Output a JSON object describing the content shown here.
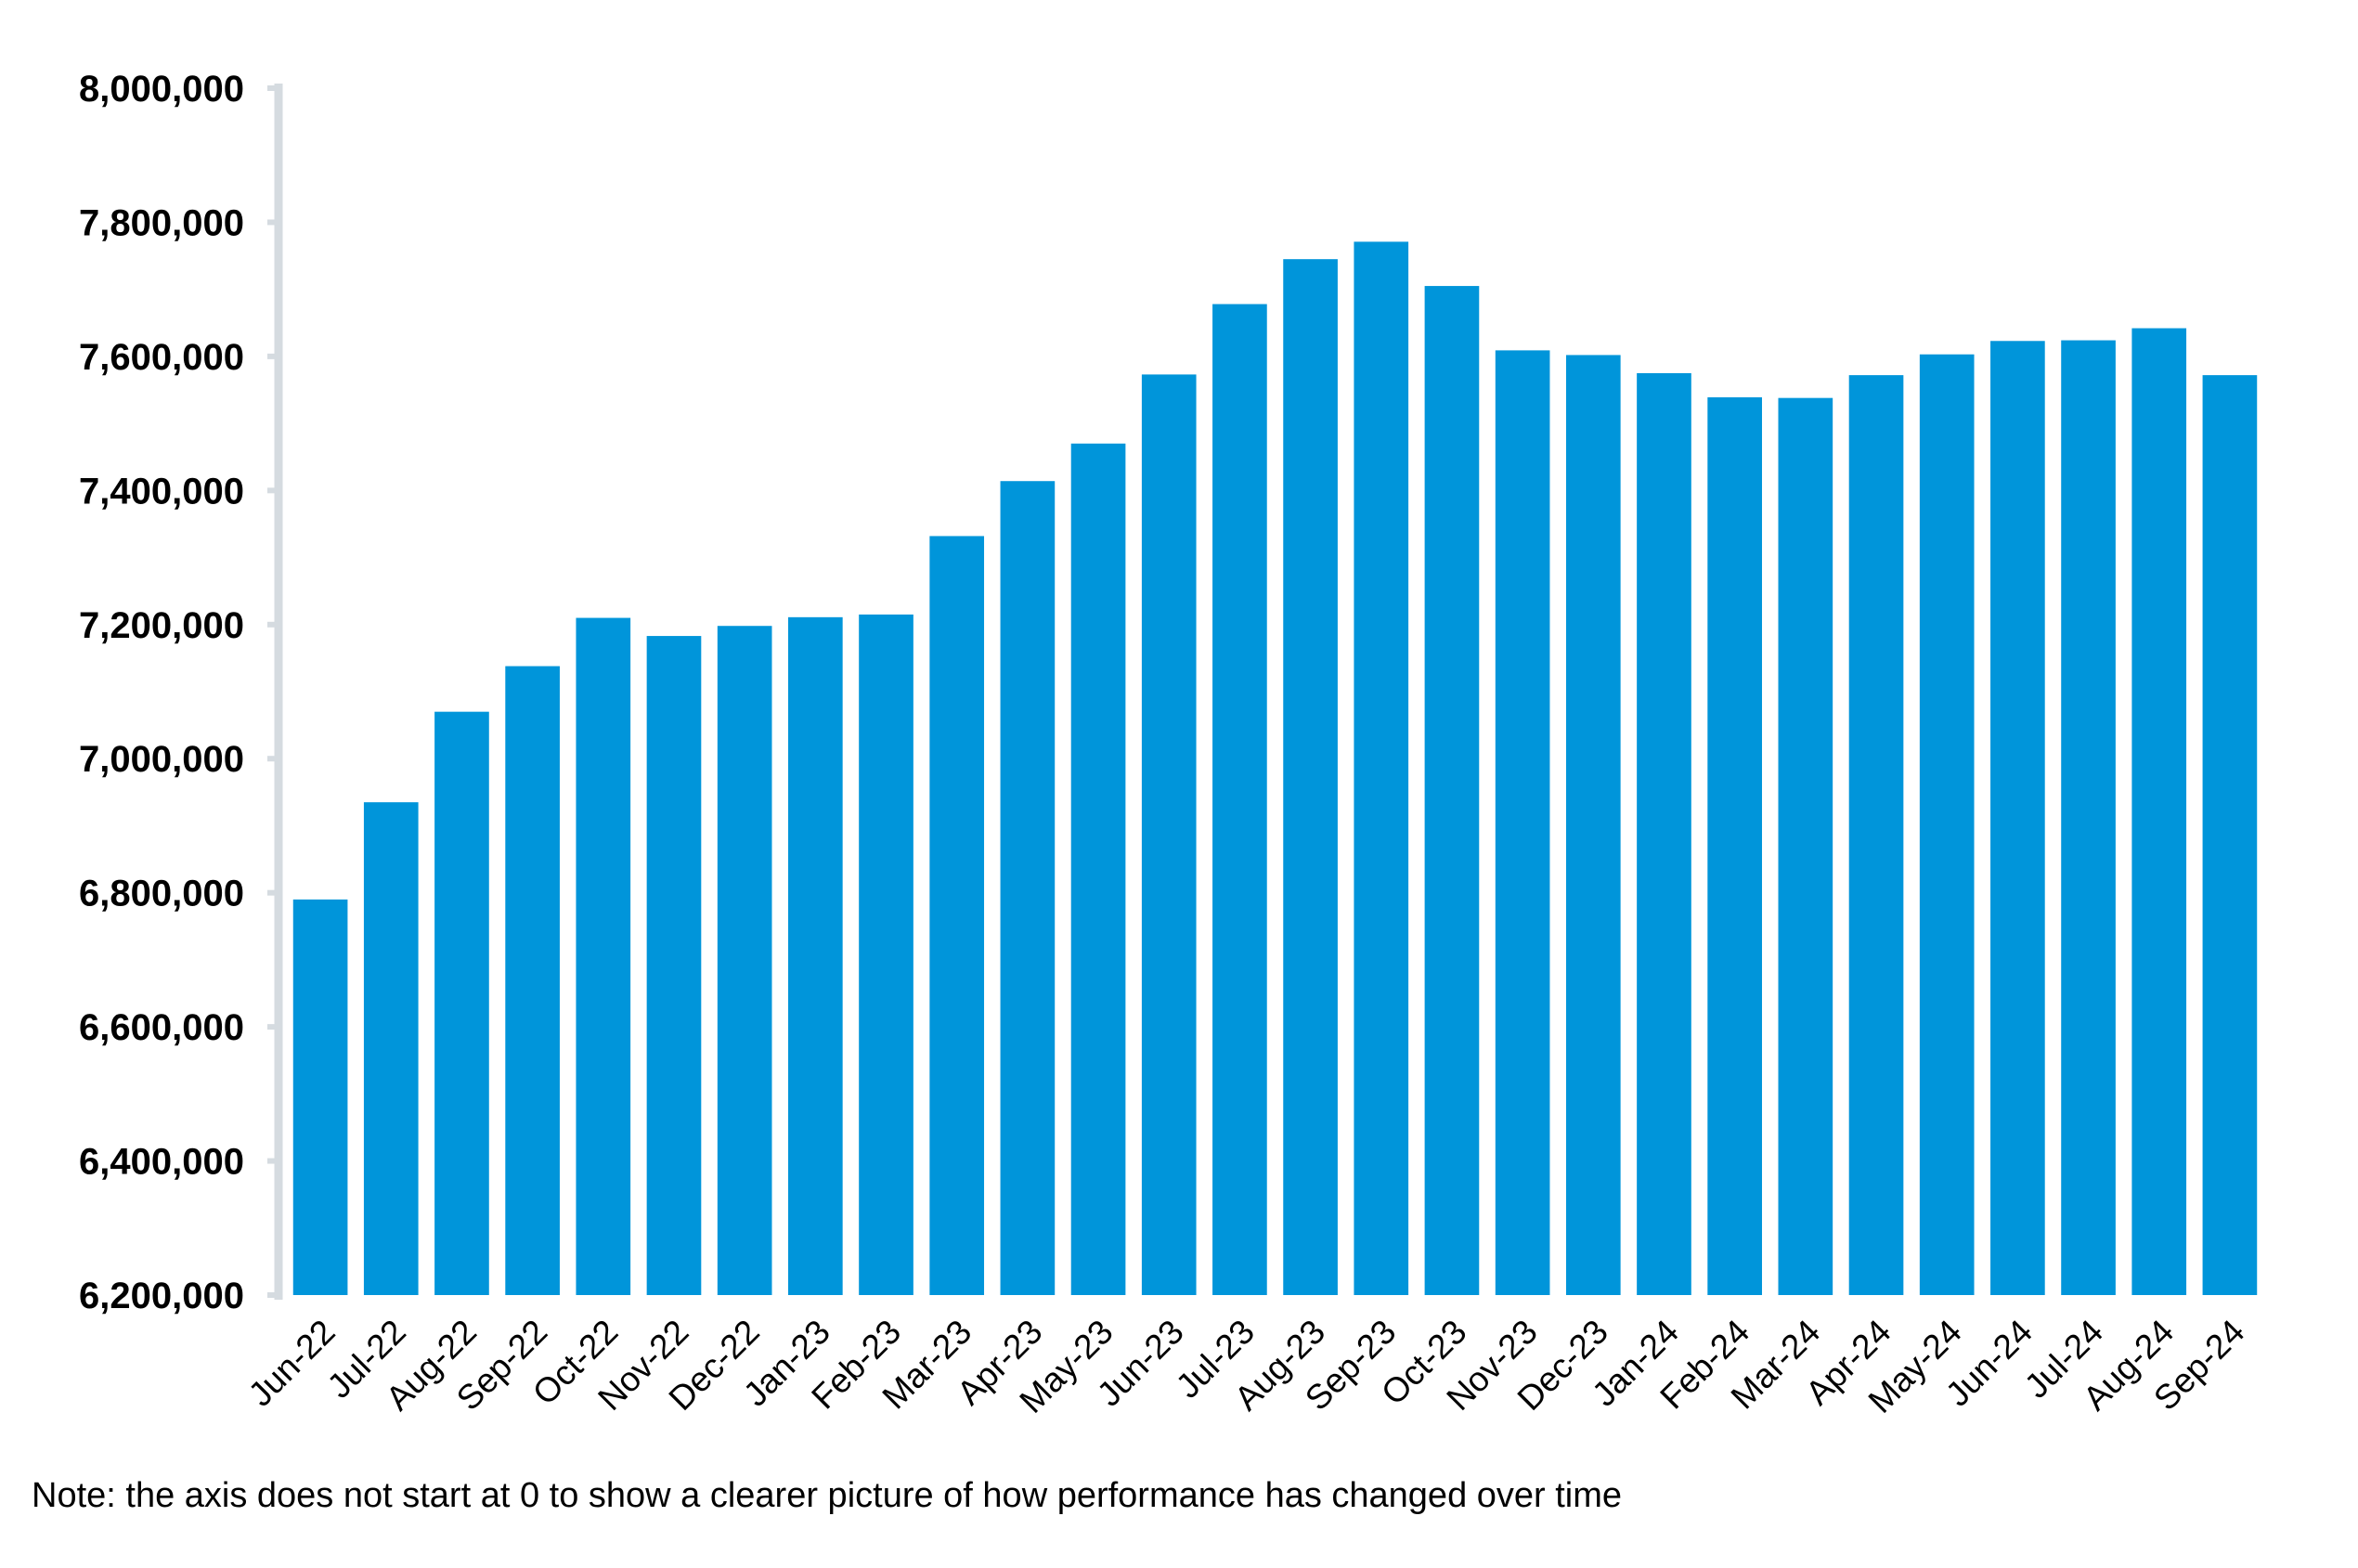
{
  "chart_data": {
    "type": "bar",
    "title": "",
    "xlabel": "",
    "ylabel": "",
    "ylim": [
      6200000,
      8000000
    ],
    "yticks": [
      6200000,
      6400000,
      6600000,
      6800000,
      7000000,
      7200000,
      7400000,
      7600000,
      7800000,
      8000000
    ],
    "ytick_labels": [
      "6,200,000",
      "6,400,000",
      "6,600,000",
      "6,800,000",
      "7,000,000",
      "7,200,000",
      "7,400,000",
      "7,600,000",
      "7,800,000",
      "8,000,000"
    ],
    "categories": [
      "Jun-22",
      "Jul-22",
      "Aug-22",
      "Sep-22",
      "Oct-22",
      "Nov-22",
      "Dec-22",
      "Jan-23",
      "Feb-23",
      "Mar-23",
      "Apr-23",
      "May-23",
      "Jun-23",
      "Jul-23",
      "Aug-23",
      "Sep-23",
      "Oct-23",
      "Nov-23",
      "Dec-23",
      "Jan-24",
      "Feb-24",
      "Mar-24",
      "Apr-24",
      "May-24",
      "Jun-24",
      "Jul-24",
      "Aug-24",
      "Sep-24"
    ],
    "values": [
      6790000,
      6935000,
      7070000,
      7138000,
      7210000,
      7183000,
      7198000,
      7211000,
      7215000,
      7332000,
      7414000,
      7470000,
      7573000,
      7678000,
      7745000,
      7771000,
      7705000,
      7609000,
      7602000,
      7575000,
      7539000,
      7538000,
      7572000,
      7603000,
      7623000,
      7624000,
      7642000,
      7572000
    ],
    "bar_color": "#0095DA",
    "axis_color": "#D5DBE0",
    "grid": false,
    "legend": "none"
  },
  "note": "Note: the axis does not start at 0 to show a clearer picture of how performance has changed over time"
}
